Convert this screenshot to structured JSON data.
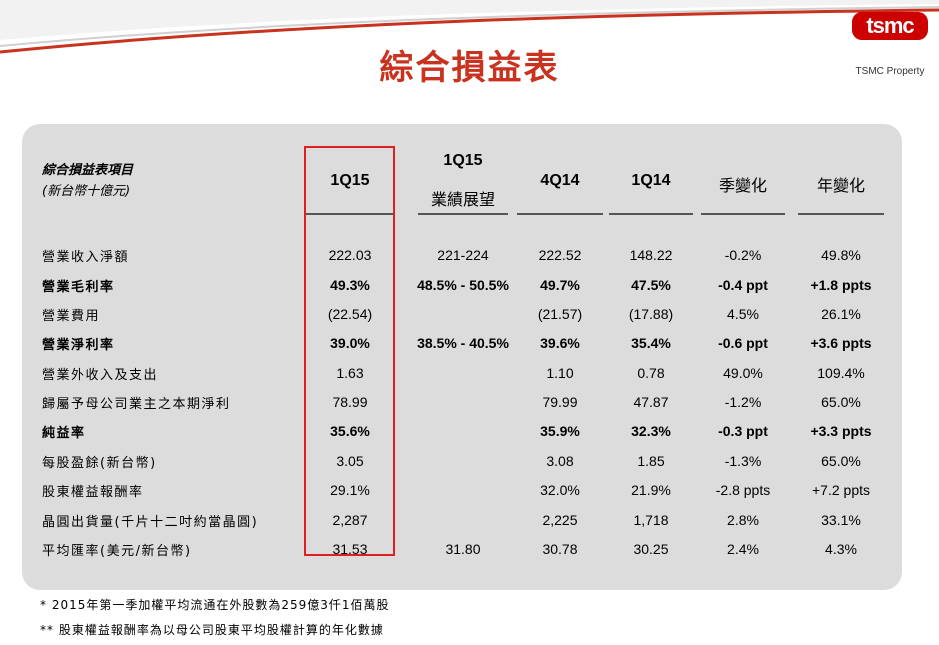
{
  "logo": {
    "word": "tsmc",
    "sub": "TSMC Property"
  },
  "title": "綜合損益表",
  "header": {
    "label_line1": "綜合損益表項目",
    "label_line2": "(新台幣十億元)",
    "columns": [
      {
        "line1": "1Q15",
        "line2": ""
      },
      {
        "line1": "1Q15",
        "line2": "業績展望"
      },
      {
        "line1": "4Q14",
        "line2": ""
      },
      {
        "line1": "1Q14",
        "line2": ""
      },
      {
        "line1": "季變化",
        "line2": ""
      },
      {
        "line1": "年變化",
        "line2": ""
      }
    ]
  },
  "rows": [
    {
      "label": "營業收入淨額",
      "bold": false,
      "values": [
        "222.03",
        "221-224",
        "222.52",
        "148.22",
        "-0.2%",
        "49.8%"
      ]
    },
    {
      "label": "營業毛利率",
      "bold": true,
      "values": [
        "49.3%",
        "48.5% - 50.5%",
        "49.7%",
        "47.5%",
        "-0.4 ppt",
        "+1.8 ppts"
      ]
    },
    {
      "label": "營業費用",
      "bold": false,
      "values": [
        "(22.54)",
        "",
        "(21.57)",
        "(17.88)",
        "4.5%",
        "26.1%"
      ]
    },
    {
      "label": "營業淨利率",
      "bold": true,
      "values": [
        "39.0%",
        "38.5% - 40.5%",
        "39.6%",
        "35.4%",
        "-0.6 ppt",
        "+3.6 ppts"
      ]
    },
    {
      "label": "營業外收入及支出",
      "bold": false,
      "values": [
        "1.63",
        "",
        "1.10",
        "0.78",
        "49.0%",
        "109.4%"
      ]
    },
    {
      "label": "歸屬予母公司業主之本期淨利",
      "bold": false,
      "values": [
        "78.99",
        "",
        "79.99",
        "47.87",
        "-1.2%",
        "65.0%"
      ]
    },
    {
      "label": "純益率",
      "bold": true,
      "values": [
        "35.6%",
        "",
        "35.9%",
        "32.3%",
        "-0.3 ppt",
        "+3.3 ppts"
      ]
    },
    {
      "label": "每股盈餘(新台幣)",
      "bold": false,
      "values": [
        "3.05",
        "",
        "3.08",
        "1.85",
        "-1.3%",
        "65.0%"
      ]
    },
    {
      "label": "股東權益報酬率",
      "bold": false,
      "values": [
        "29.1%",
        "",
        "32.0%",
        "21.9%",
        "-2.8 ppts",
        "+7.2 ppts"
      ]
    },
    {
      "label": "晶圓出貨量(千片十二吋約當晶圓)",
      "bold": false,
      "values": [
        "2,287",
        "",
        "2,225",
        "1,718",
        "2.8%",
        "33.1%"
      ]
    },
    {
      "label": "平均匯率(美元/新台幣)",
      "bold": false,
      "values": [
        "31.53",
        "31.80",
        "30.78",
        "30.25",
        "2.4%",
        "4.3%"
      ]
    }
  ],
  "footnotes": [
    "*  2015年第一季加權平均流通在外股數為259億3仟1佰萬股",
    "** 股東權益報酬率為以母公司股東平均股權計算的年化數據"
  ],
  "colors": {
    "title": "#c8321e",
    "highlight": "#e02020",
    "panel": "#dcdcdc",
    "logo": "#cc0000"
  }
}
